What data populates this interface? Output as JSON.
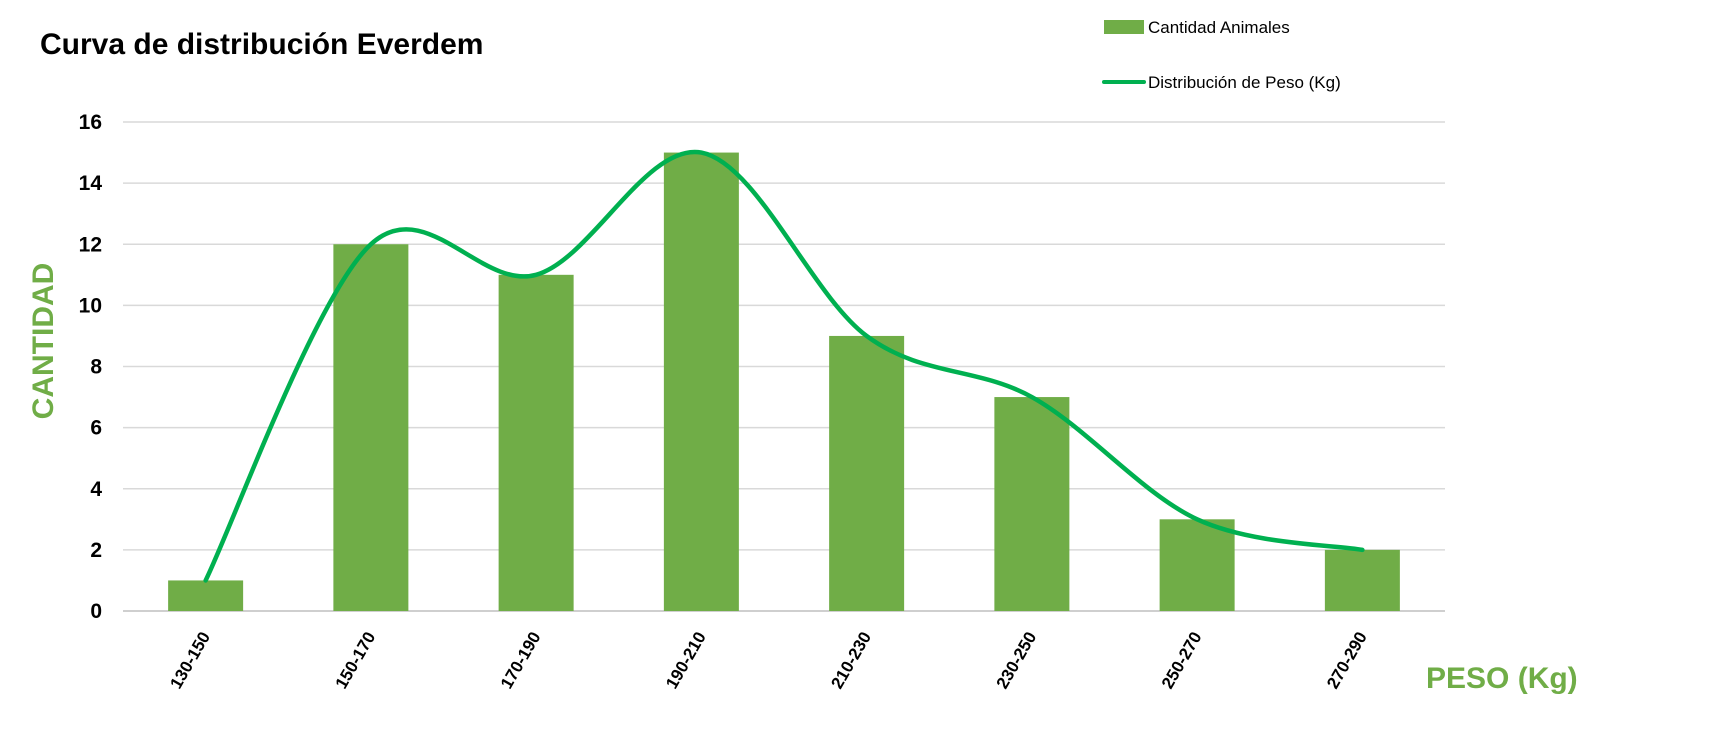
{
  "chart_data": {
    "type": "bar",
    "title": "Curva de distribución Everdem",
    "xlabel": "PESO (Kg)",
    "ylabel": "CANTIDAD",
    "categories": [
      "130-150",
      "150-170",
      "170-190",
      "190-210",
      "210-230",
      "230-250",
      "250-270",
      "270-290"
    ],
    "series": [
      {
        "name": "Cantidad Animales",
        "type": "bar",
        "color": "#70AD47",
        "values": [
          1,
          12,
          11,
          15,
          9,
          7,
          3,
          2
        ]
      },
      {
        "name": "Distribución de Peso (Kg)",
        "type": "line",
        "smooth": true,
        "color": "#00B050",
        "values": [
          1,
          12,
          11,
          15,
          9,
          7,
          3,
          2
        ]
      }
    ],
    "ylim": [
      0,
      16
    ],
    "yticks": [
      0,
      2,
      4,
      6,
      8,
      10,
      12,
      14,
      16
    ],
    "grid": true,
    "legend_position": "top-right",
    "axis_title_color": "#70AD47"
  }
}
